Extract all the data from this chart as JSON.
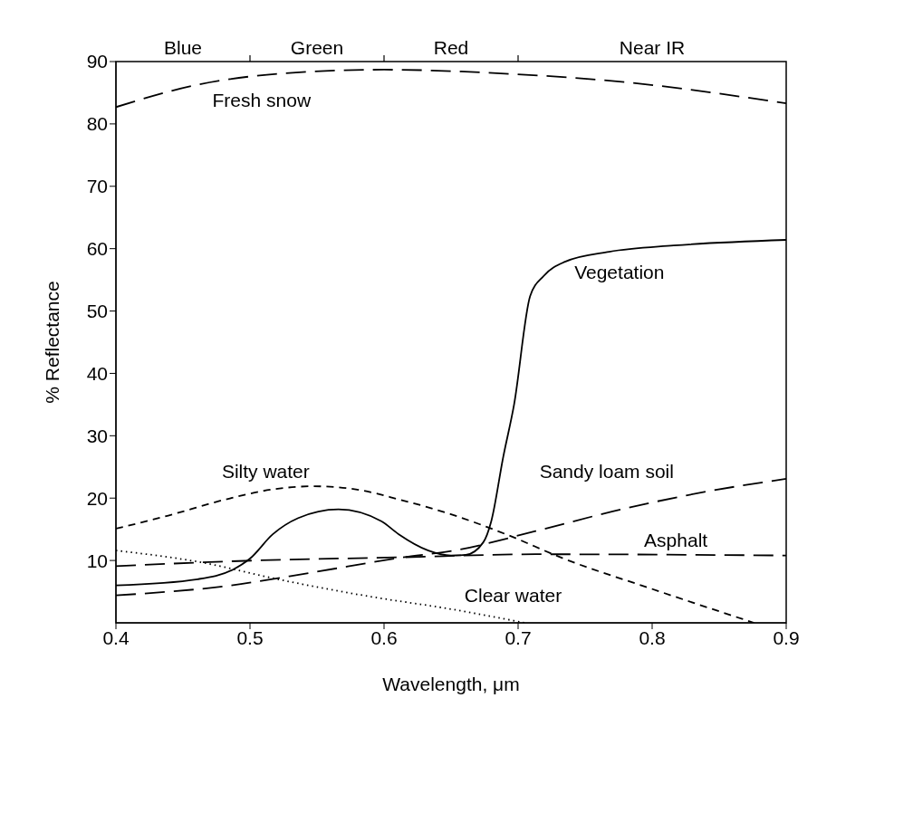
{
  "chart_data": {
    "type": "line",
    "xlabel": "Wavelength, μm",
    "ylabel": "% Reflectance",
    "xlim": [
      0.4,
      0.9
    ],
    "ylim": [
      0,
      90
    ],
    "xticks": [
      0.4,
      0.5,
      0.6,
      0.7,
      0.8,
      0.9
    ],
    "yticks": [
      10,
      20,
      30,
      40,
      50,
      60,
      70,
      80,
      90
    ],
    "marker": "none",
    "annotations": [
      "Blue",
      "Green",
      "Red",
      "Near IR"
    ],
    "series": [
      {
        "name": "Fresh snow",
        "color": "#000000",
        "line_style": "dashed",
        "x": [
          0.4,
          0.461,
          0.525,
          0.6,
          0.687,
          0.784,
          0.9
        ],
        "values": [
          82.7,
          86.3,
          88.1,
          88.7,
          88.1,
          86.6,
          83.3
        ]
      },
      {
        "name": "Vegetation",
        "color": "#000000",
        "line_style": "solid",
        "x": [
          0.4,
          0.461,
          0.487,
          0.5,
          0.517,
          0.536,
          0.566,
          0.598,
          0.611,
          0.633,
          0.65,
          0.661,
          0.674,
          0.68,
          0.689,
          0.697,
          0.709,
          0.719,
          0.735,
          0.768,
          0.816,
          0.9
        ],
        "values": [
          6.0,
          7.0,
          8.5,
          10.3,
          14.2,
          16.8,
          18.2,
          16.3,
          14.2,
          11.6,
          10.8,
          10.9,
          12.9,
          16.3,
          26.7,
          35.0,
          52.4,
          55.6,
          57.9,
          59.5,
          60.5,
          61.4
        ]
      },
      {
        "name": "Silty water",
        "color": "#000000",
        "line_style": "short_dashed",
        "x": [
          0.4,
          0.439,
          0.482,
          0.517,
          0.547,
          0.579,
          0.611,
          0.65,
          0.691,
          0.734,
          0.799,
          0.876
        ],
        "values": [
          15.1,
          17.2,
          19.8,
          21.4,
          21.9,
          21.4,
          19.8,
          17.4,
          14.2,
          10.3,
          5.5,
          0
        ]
      },
      {
        "name": "Sandy loam soil",
        "color": "#000000",
        "line_style": "dashed",
        "x": [
          0.4,
          0.482,
          0.547,
          0.611,
          0.655,
          0.713,
          0.777,
          0.842,
          0.9
        ],
        "values": [
          4.4,
          5.9,
          8.1,
          10.4,
          11.7,
          14.7,
          18.2,
          21.1,
          23.1
        ]
      },
      {
        "name": "Asphalt",
        "color": "#000000",
        "line_style": "dashed",
        "x": [
          0.4,
          0.504,
          0.611,
          0.713,
          0.9
        ],
        "values": [
          9.1,
          10.0,
          10.5,
          11.0,
          10.8
        ]
      },
      {
        "name": "Clear water",
        "color": "#000000",
        "line_style": "dotted",
        "x": [
          0.4,
          0.461,
          0.525,
          0.59,
          0.65,
          0.705
        ],
        "values": [
          11.6,
          9.8,
          6.8,
          4.2,
          2.2,
          0
        ]
      }
    ]
  }
}
